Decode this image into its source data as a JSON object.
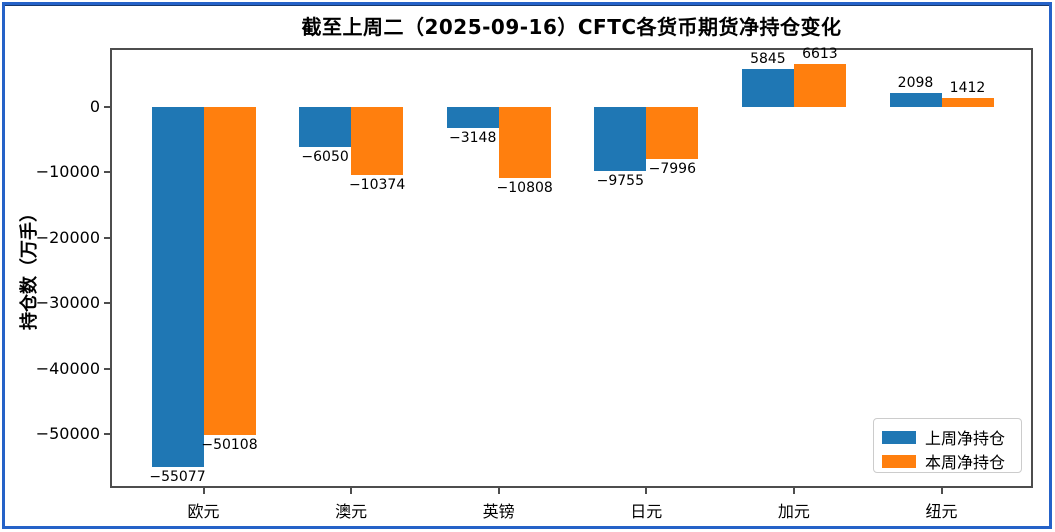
{
  "frame": {
    "border_color": "#2562c8"
  },
  "chart_data": {
    "type": "bar",
    "title": "截至上周二（2025-09-16）CFTC各货币期货净持仓变化",
    "xlabel": "",
    "ylabel": "持仓数（万手）",
    "categories": [
      "欧元",
      "澳元",
      "英镑",
      "日元",
      "加元",
      "纽元"
    ],
    "series": [
      {
        "name": "上周净持仓",
        "color": "#1f77b4",
        "values": [
          -55077,
          -6050,
          -3148,
          -9755,
          5845,
          2098
        ]
      },
      {
        "name": "本周净持仓",
        "color": "#ff7f0e",
        "values": [
          -50108,
          -10374,
          -10808,
          -7996,
          6613,
          1412
        ]
      }
    ],
    "value_labels": [
      "−55077",
      "−50108",
      "−6050",
      "−10374",
      "−3148",
      "−10808",
      "−9755",
      "−7996",
      "5845",
      "6613",
      "2098",
      "1412"
    ],
    "yticks": [
      0,
      -10000,
      -20000,
      -30000,
      -40000,
      -50000
    ],
    "ylim": [
      -58300,
      9000
    ],
    "grid": false,
    "legend_position": "lower right"
  }
}
